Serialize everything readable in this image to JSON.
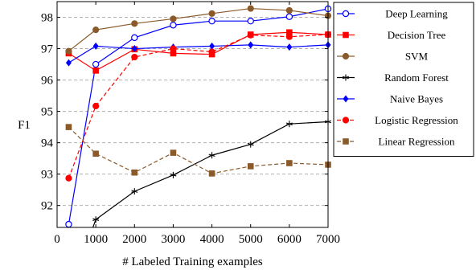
{
  "chart_data": {
    "type": "line",
    "xlabel": "# Labeled Training examples",
    "ylabel": "F1",
    "xlim": [
      0,
      7000
    ],
    "ylim": [
      91.3,
      98.5
    ],
    "x_ticks": [
      0,
      1000,
      2000,
      3000,
      4000,
      5000,
      6000,
      7000
    ],
    "y_ticks": [
      92,
      93,
      94,
      95,
      96,
      97,
      98
    ],
    "grid": "horizontal dashed",
    "legend_position": "top-right outside",
    "series": [
      {
        "name": "Deep Learning",
        "color": "#0000ff",
        "line": "solid",
        "marker": "open-circle",
        "x": [
          300,
          1000,
          2000,
          3000,
          4000,
          5000,
          6000,
          7000
        ],
        "y": [
          91.4,
          96.5,
          97.35,
          97.75,
          97.88,
          97.88,
          98.02,
          98.27
        ]
      },
      {
        "name": "Decision Tree",
        "color": "#ff0000",
        "line": "solid",
        "marker": "filled-square",
        "x": [
          300,
          1000,
          2000,
          3000,
          4000,
          5000,
          6000,
          7000
        ],
        "y": [
          96.85,
          96.3,
          96.98,
          96.85,
          96.82,
          97.45,
          97.52,
          97.45
        ]
      },
      {
        "name": "SVM",
        "color": "#8b5a2b",
        "line": "solid",
        "marker": "filled-circle",
        "x": [
          300,
          1000,
          2000,
          3000,
          4000,
          5000,
          6000,
          7000
        ],
        "y": [
          96.92,
          97.6,
          97.8,
          97.95,
          98.12,
          98.28,
          98.22,
          98.05
        ]
      },
      {
        "name": "Random Forest",
        "color": "#000000",
        "line": "solid",
        "marker": "star",
        "x": [
          1000,
          2000,
          3000,
          4000,
          5000,
          6000,
          7000
        ],
        "y": [
          91.55,
          92.45,
          92.97,
          93.6,
          93.95,
          94.6,
          94.67
        ]
      },
      {
        "name": "Naive Bayes",
        "color": "#0000ff",
        "line": "solid",
        "marker": "filled-diamond",
        "x": [
          300,
          1000,
          2000,
          3000,
          4000,
          5000,
          6000,
          7000
        ],
        "y": [
          96.55,
          97.08,
          97.0,
          97.05,
          97.08,
          97.12,
          97.05,
          97.12
        ]
      },
      {
        "name": "Logistic Regression",
        "color": "#ff0000",
        "line": "dashed",
        "marker": "filled-circle",
        "x": [
          300,
          1000,
          2000,
          3000,
          4000,
          5000,
          6000,
          7000
        ],
        "y": [
          92.87,
          95.17,
          96.73,
          97.0,
          96.9,
          97.43,
          97.38,
          97.45
        ]
      },
      {
        "name": "Linear Regression",
        "color": "#8b5a2b",
        "line": "dashed",
        "marker": "filled-square",
        "x": [
          300,
          1000,
          2000,
          3000,
          4000,
          5000,
          6000,
          7000
        ],
        "y": [
          94.5,
          93.65,
          93.05,
          93.68,
          93.02,
          93.25,
          93.35,
          93.3
        ]
      }
    ]
  }
}
